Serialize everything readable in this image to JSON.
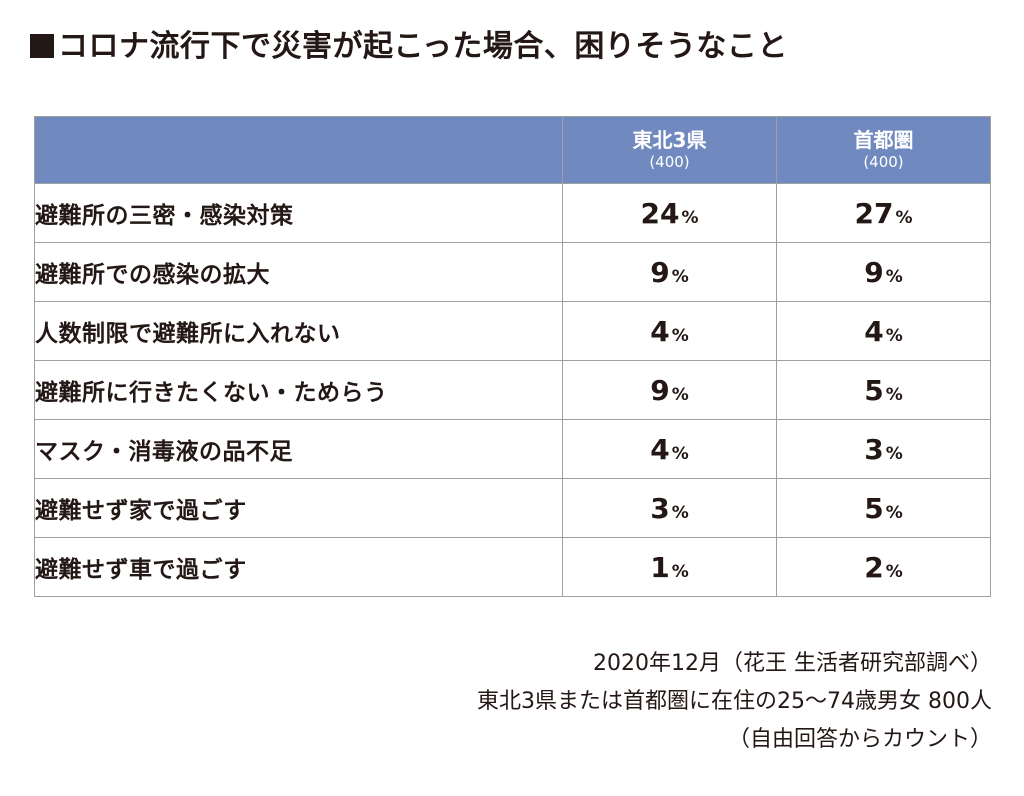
{
  "title": "コロナ流行下で災害が起こった場合、困りそうなこと",
  "chart_data": {
    "type": "table",
    "title": "コロナ流行下で災害が起こった場合、困りそうなこと",
    "columns": [
      {
        "name": "東北3県",
        "n": "(400)"
      },
      {
        "name": "首都圏",
        "n": "(400)"
      }
    ],
    "unit": "%",
    "rows": [
      {
        "label": "避難所の三密・感染対策",
        "values": [
          24,
          27
        ]
      },
      {
        "label": "避難所での感染の拡大",
        "values": [
          9,
          9
        ]
      },
      {
        "label": "人数制限で避難所に入れない",
        "values": [
          4,
          4
        ]
      },
      {
        "label": "避難所に行きたくない・ためらう",
        "values": [
          9,
          5
        ]
      },
      {
        "label": "マスク・消毒液の品不足",
        "values": [
          4,
          3
        ]
      },
      {
        "label": "避難せず家で過ごす",
        "values": [
          3,
          5
        ]
      },
      {
        "label": "避難せず車で過ごす",
        "values": [
          1,
          2
        ]
      }
    ],
    "header_color": "#7089bf"
  },
  "notes": [
    "2020年12月（花王 生活者研究部調べ）",
    "東北3県または首都圏に在住の25〜74歳男女 800人",
    "（自由回答からカウント）"
  ]
}
